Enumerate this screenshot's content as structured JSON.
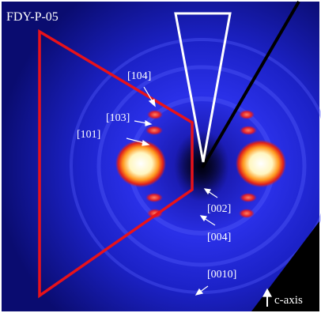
{
  "image": {
    "sample_label": "FDY-P-05",
    "reflections": [
      "[104]",
      "[103]",
      "[101]",
      "[002]",
      "[004]",
      "[0010]"
    ],
    "axis_label": "c-axis"
  }
}
